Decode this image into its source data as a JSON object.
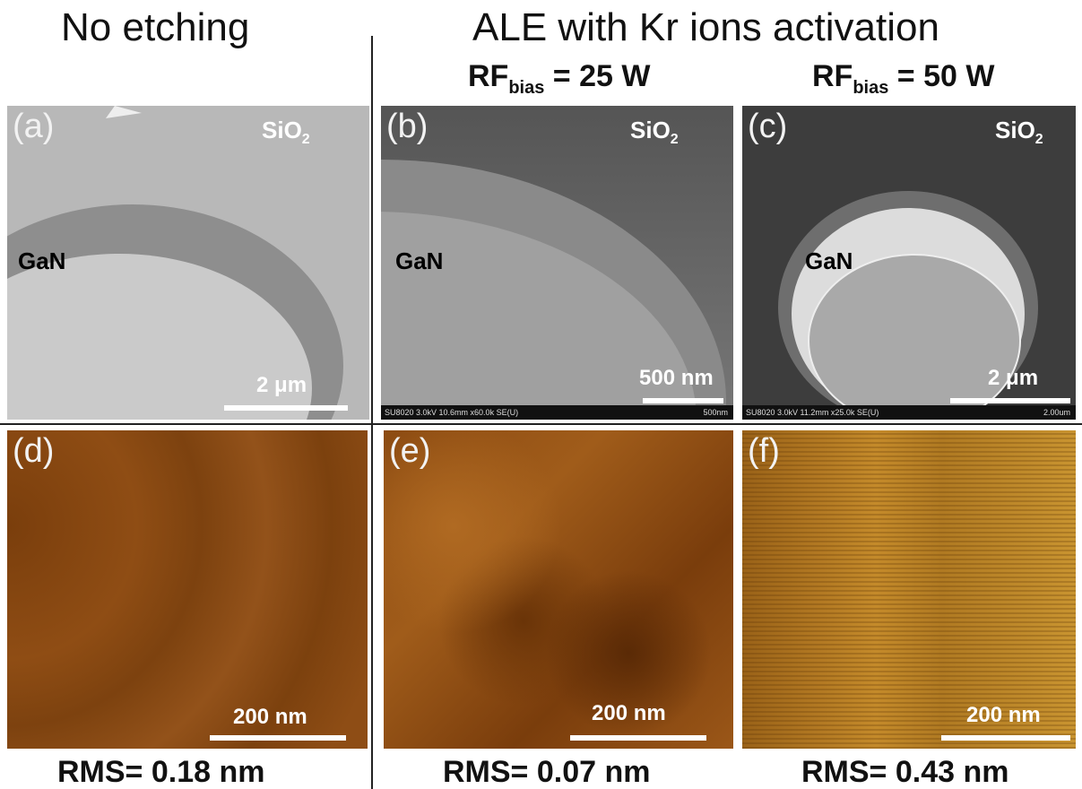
{
  "header": {
    "left": "No etching",
    "right": "ALE with Kr ions activation"
  },
  "conditions": [
    {
      "main": "RF",
      "sub": "bias",
      "rest": " = 25 W"
    },
    {
      "main": "RF",
      "sub": "bias",
      "rest": " = 50 W"
    }
  ],
  "sem_panels": [
    {
      "label": "(a)",
      "top_material": {
        "main": "SiO",
        "sub": "2"
      },
      "material": "GaN",
      "scale": "2 μm"
    },
    {
      "label": "(b)",
      "top_material": {
        "main": "SiO",
        "sub": "2"
      },
      "material": "GaN",
      "scale": "500 nm",
      "footer": "SU8020 3.0kV 10.6mm x60.0k SE(U)",
      "footer_scale": "500nm"
    },
    {
      "label": "(c)",
      "top_material": {
        "main": "SiO",
        "sub": "2"
      },
      "material": "GaN",
      "scale": "2 μm",
      "footer": "SU8020 3.0kV 11.2mm x25.0k SE(U)",
      "footer_scale": "2.00um"
    }
  ],
  "afm_panels": [
    {
      "label": "(d)",
      "scale": "200 nm",
      "rms": "RMS= 0.18 nm"
    },
    {
      "label": "(e)",
      "scale": "200 nm",
      "rms": "RMS= 0.07 nm"
    },
    {
      "label": "(f)",
      "scale": "200 nm",
      "rms": "RMS= 0.43 nm"
    }
  ]
}
